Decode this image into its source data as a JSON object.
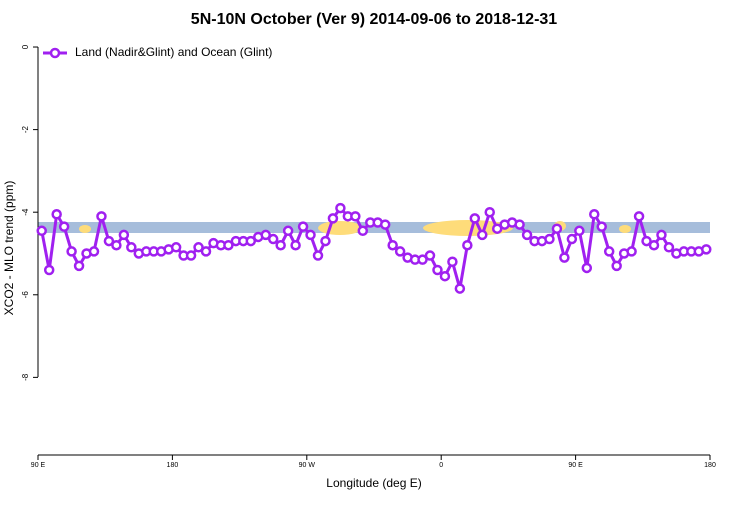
{
  "chart_data": {
    "type": "line",
    "title": "5N-10N October (Ver 9)   2014-09-06 to 2018-12-31",
    "x_label": "Longitude (deg E)",
    "y_label": "XCO2 - MLO trend (ppm)",
    "x": [
      92.5,
      97.5,
      102.5,
      107.5,
      112.5,
      117.5,
      122.5,
      127.5,
      132.5,
      137.5,
      142.5,
      147.5,
      152.5,
      157.5,
      162.5,
      167.5,
      172.5,
      177.5,
      182.5,
      187.5,
      192.5,
      197.5,
      202.5,
      207.5,
      212.5,
      217.5,
      222.5,
      227.5,
      232.5,
      237.5,
      242.5,
      247.5,
      252.5,
      257.5,
      262.5,
      267.5,
      272.5,
      277.5,
      282.5,
      287.5,
      292.5,
      297.5,
      302.5,
      307.5,
      312.5,
      317.5,
      322.5,
      327.5,
      332.5,
      337.5,
      342.5,
      347.5,
      352.5,
      357.5,
      362.5,
      367.5,
      372.5,
      377.5,
      382.5,
      387.5,
      392.5,
      397.5,
      402.5,
      407.5,
      412.5,
      417.5,
      422.5,
      427.5,
      432.5,
      437.5,
      442.5,
      447.5,
      452.5,
      457.5,
      462.5,
      467.5,
      472.5,
      477.5,
      482.5,
      487.5,
      492.5,
      497.5,
      502.5,
      507.5,
      512.5,
      517.5,
      522.5,
      527.5,
      532.5,
      537.5
    ],
    "series": [
      {
        "name": "Land (Nadir&Glint) and Ocean (Glint)",
        "color": "#a020f0",
        "values": [
          -4.45,
          -5.4,
          -4.05,
          -4.35,
          -4.95,
          -5.3,
          -5.0,
          -4.95,
          -4.1,
          -4.7,
          -4.8,
          -4.55,
          -4.85,
          -5.0,
          -4.95,
          -4.95,
          -4.95,
          -4.9,
          -4.85,
          -5.05,
          -5.05,
          -4.85,
          -4.95,
          -4.75,
          -4.8,
          -4.8,
          -4.7,
          -4.7,
          -4.7,
          -4.6,
          -4.55,
          -4.65,
          -4.8,
          -4.45,
          -4.8,
          -4.35,
          -4.55,
          -5.05,
          -4.7,
          -4.15,
          -3.9,
          -4.1,
          -4.1,
          -4.45,
          -4.25,
          -4.25,
          -4.3,
          -4.8,
          -4.95,
          -5.1,
          -5.15,
          -5.15,
          -5.05,
          -5.4,
          -5.55,
          -5.2,
          -5.85,
          -4.8,
          -4.15,
          -4.55,
          -4.0,
          -4.4,
          -4.3,
          -4.25,
          -4.3,
          -4.55,
          -4.7,
          -4.7,
          -4.65,
          -4.4,
          -5.1,
          -4.65,
          -4.45,
          -5.35,
          -4.05,
          -4.35,
          -4.95,
          -5.3,
          -5.0,
          -4.95,
          -4.1,
          -4.7,
          -4.8,
          -4.55,
          -4.85,
          -5.0,
          -4.95,
          -4.95,
          -4.95,
          -4.9
        ]
      }
    ],
    "xlim": [
      90,
      540
    ],
    "xticks": [
      {
        "value": 90,
        "label": "90 E"
      },
      {
        "value": 180,
        "label": "180"
      },
      {
        "value": 270,
        "label": "90 W"
      },
      {
        "value": 360,
        "label": "0"
      },
      {
        "value": 450,
        "label": "90 E"
      },
      {
        "value": 540,
        "label": "180"
      }
    ],
    "ylim": [
      -9.88,
      0.17
    ],
    "yticks": [
      0,
      -2,
      -4,
      -6,
      -8
    ],
    "legend": "top-left"
  }
}
